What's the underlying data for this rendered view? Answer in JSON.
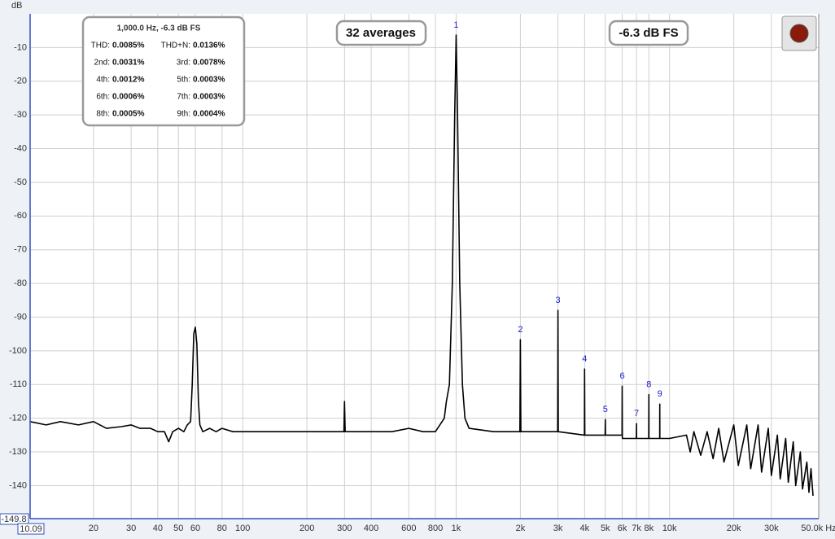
{
  "chart_data": {
    "type": "line",
    "y_label": "dB",
    "xscale": "log",
    "grid": true,
    "xlim": [
      10.09,
      50000
    ],
    "ylim": [
      -149.8,
      0
    ],
    "yticks": [
      -10,
      -20,
      -30,
      -40,
      -50,
      -60,
      -70,
      -80,
      -90,
      -100,
      -110,
      -120,
      -130,
      -140
    ],
    "xticks": [
      20,
      30,
      40,
      50,
      60,
      80,
      100,
      200,
      300,
      400,
      600,
      800,
      {
        "value": 1000,
        "label": "1k"
      },
      {
        "value": 2000,
        "label": "2k"
      },
      {
        "value": 3000,
        "label": "3k"
      },
      {
        "value": 4000,
        "label": "4k"
      },
      {
        "value": 5000,
        "label": "5k"
      },
      {
        "value": 6000,
        "label": "6k"
      },
      {
        "value": 7000,
        "label": "7k"
      },
      {
        "value": 8000,
        "label": "8k"
      },
      {
        "value": 10000,
        "label": "10k"
      },
      {
        "value": 20000,
        "label": "20k"
      },
      {
        "value": 30000,
        "label": "30k"
      },
      {
        "value": 50000,
        "label": "50.0k Hz"
      }
    ],
    "x": [
      10.09,
      12,
      14,
      17,
      20,
      23,
      27,
      30,
      33,
      37,
      40,
      43,
      45,
      47,
      50,
      53,
      55,
      57,
      58,
      59,
      60,
      61,
      62,
      63,
      65,
      70,
      75,
      80,
      90,
      100,
      150,
      200,
      250,
      290,
      298,
      300,
      302,
      400,
      500,
      600,
      700,
      800,
      880,
      900,
      930,
      960,
      985,
      1000,
      1015,
      1040,
      1070,
      1100,
      1150,
      1500,
      1990,
      2000,
      2010,
      2500,
      2990,
      3000,
      3010,
      3990,
      4000,
      4010,
      4990,
      5000,
      5010,
      5990,
      6000,
      6010,
      6990,
      7000,
      7010,
      7990,
      8000,
      8010,
      8990,
      9000,
      9010,
      10000,
      12000,
      12500,
      13000,
      14000,
      15000,
      16000,
      17000,
      18000,
      20000,
      21000,
      23000,
      24000,
      26000,
      27000,
      29000,
      30000,
      32000,
      33000,
      35000,
      36000,
      38000,
      39000,
      41000,
      42000,
      44000,
      45000,
      46000,
      47000
    ],
    "series": [
      {
        "color": "#000000",
        "values": [
          -121,
          -122,
          -121,
          -122,
          -121,
          -123,
          -122.5,
          -122,
          -123,
          -123,
          -124,
          -124,
          -127,
          -124,
          -123,
          -124,
          -122,
          -121,
          -110,
          -95,
          -93,
          -98,
          -115,
          -122,
          -124,
          -123,
          -124,
          -123,
          -124,
          -124,
          -124,
          -124,
          -124,
          -124,
          -124,
          -115,
          -124,
          -124,
          -124,
          -123,
          -124,
          -124,
          -120,
          -115,
          -110,
          -80,
          -30,
          -6.3,
          -30,
          -80,
          -110,
          -120,
          -123,
          -124,
          -124,
          -96.7,
          -124,
          -124,
          -124,
          -88,
          -124,
          -125,
          -105.4,
          -125,
          -125,
          -120.4,
          -125,
          -125,
          -110.5,
          -126,
          -126,
          -121.6,
          -126,
          -126,
          -113,
          -126,
          -126,
          -115.8,
          -126,
          -126,
          -125,
          -130,
          -124,
          -131,
          -124,
          -132,
          -123,
          -133,
          -122,
          -134,
          -122,
          -135,
          -122,
          -136,
          -123,
          -137,
          -125,
          -138,
          -126,
          -139,
          -127,
          -140,
          -130,
          -141,
          -133,
          -142,
          -135,
          -143
        ]
      }
    ],
    "harmonics": [
      {
        "label": "1",
        "x": 1000,
        "y": -6.3
      },
      {
        "label": "2",
        "x": 2000,
        "y": -96.7
      },
      {
        "label": "3",
        "x": 3000,
        "y": -88
      },
      {
        "label": "4",
        "x": 4000,
        "y": -105.4
      },
      {
        "label": "5",
        "x": 5000,
        "y": -120.4
      },
      {
        "label": "6",
        "x": 6000,
        "y": -110.5
      },
      {
        "label": "7",
        "x": 7000,
        "y": -121.6
      },
      {
        "label": "8",
        "x": 8000,
        "y": -113
      },
      {
        "label": "9",
        "x": 9000,
        "y": -115.8
      }
    ],
    "averages": "32 averages",
    "level": "-6.3 dB FS",
    "thd_box": {
      "title": "1,000.0 Hz, -6.3 dB FS",
      "rows": [
        [
          "THD:",
          "0.0085%",
          "THD+N:",
          "0.0136%"
        ],
        [
          "2nd:",
          "0.0031%",
          "3rd:",
          "0.0078%"
        ],
        [
          "4th:",
          "0.0012%",
          "5th:",
          "0.0003%"
        ],
        [
          "6th:",
          "0.0006%",
          "7th:",
          "0.0003%"
        ],
        [
          "8th:",
          "0.0005%",
          "9th:",
          "0.0004%"
        ]
      ]
    }
  }
}
